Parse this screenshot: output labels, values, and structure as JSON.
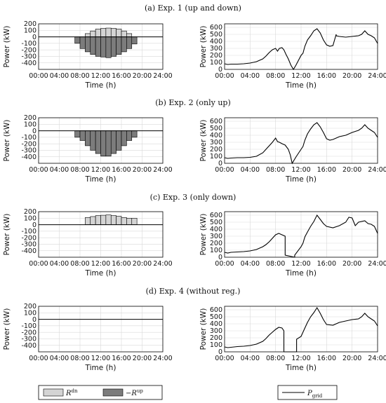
{
  "chart_data": [
    {
      "type": "bar",
      "row": 0,
      "title": "(a) Exp. 1 (up and down)",
      "xlabel": "Time (h)",
      "ylabel": "Power (kW)",
      "ylim": [
        -500,
        200
      ],
      "yticks": [
        200,
        100,
        0,
        -100,
        -200,
        -300,
        -400
      ],
      "xticks": [
        "00:00",
        "04:00",
        "08:00",
        "12:00",
        "16:00",
        "20:00",
        "24:00"
      ],
      "grid": true,
      "x_hours": [
        7.5,
        8.5,
        9.5,
        10.5,
        11.5,
        12.5,
        13.5,
        14.5,
        15.5,
        16.5,
        17.5,
        18.5
      ],
      "series": [
        {
          "name": "Rdn",
          "values": [
            0,
            0,
            50,
            90,
            120,
            130,
            135,
            130,
            120,
            90,
            50,
            0
          ]
        },
        {
          "name": "-Rup",
          "values": [
            -100,
            -180,
            -230,
            -270,
            -300,
            -310,
            -320,
            -300,
            -270,
            -230,
            -180,
            -110
          ]
        }
      ]
    },
    {
      "type": "line",
      "row": 0,
      "xlabel": "Time (h)",
      "ylabel": "Power (kW)",
      "ylim": [
        0,
        650
      ],
      "yticks": [
        600,
        500,
        400,
        300,
        200,
        100,
        0
      ],
      "xticks": [
        "00:00",
        "04:00",
        "08:00",
        "12:00",
        "16:00",
        "20:00",
        "24:00"
      ],
      "grid": true,
      "series": [
        {
          "name": "Pgrid",
          "x": [
            0,
            0.5,
            1,
            2,
            3,
            4,
            5,
            6,
            6.5,
            7,
            7.5,
            8,
            8.3,
            8.6,
            9,
            9.3,
            9.6,
            10,
            10.4,
            10.8,
            10.8,
            11.2,
            11.2,
            12,
            12.3,
            12.6,
            13,
            13.5,
            14,
            14.5,
            15,
            15.5,
            16,
            16.5,
            17,
            17.5,
            17.5,
            18,
            19,
            20,
            21,
            21.5,
            22,
            22.5,
            23,
            23.5,
            24
          ],
          "y": [
            80,
            70,
            75,
            75,
            80,
            90,
            110,
            150,
            190,
            240,
            280,
            300,
            260,
            300,
            310,
            280,
            220,
            150,
            60,
            0,
            0,
            60,
            60,
            200,
            230,
            330,
            420,
            480,
            550,
            580,
            520,
            420,
            350,
            330,
            340,
            500,
            480,
            470,
            460,
            470,
            480,
            500,
            550,
            500,
            480,
            450,
            370
          ]
        }
      ]
    },
    {
      "type": "bar",
      "row": 1,
      "title": "(b) Exp. 2 (only up)",
      "xlabel": "Time (h)",
      "ylabel": "Power (kW)",
      "ylim": [
        -500,
        200
      ],
      "yticks": [
        200,
        100,
        0,
        -100,
        -200,
        -300,
        -400
      ],
      "xticks": [
        "00:00",
        "04:00",
        "08:00",
        "12:00",
        "16:00",
        "20:00",
        "24:00"
      ],
      "grid": true,
      "x_hours": [
        7.5,
        8.5,
        9.5,
        10.5,
        11.5,
        12.5,
        13.5,
        14.5,
        15.5,
        16.5,
        17.5,
        18.5
      ],
      "series": [
        {
          "name": "-Rup",
          "values": [
            -100,
            -150,
            -230,
            -300,
            -350,
            -390,
            -390,
            -350,
            -300,
            -230,
            -150,
            -100
          ]
        }
      ]
    },
    {
      "type": "line",
      "row": 1,
      "xlabel": "Time (h)",
      "ylabel": "Power (kW)",
      "ylim": [
        0,
        650
      ],
      "yticks": [
        600,
        500,
        400,
        300,
        200,
        100,
        0
      ],
      "xticks": [
        "00:00",
        "04:00",
        "08:00",
        "12:00",
        "16:00",
        "20:00",
        "24:00"
      ],
      "grid": true,
      "series": [
        {
          "name": "Pgrid",
          "x": [
            0,
            0.5,
            1,
            2,
            3,
            4,
            5,
            6,
            6.5,
            7,
            7.5,
            8,
            8.3,
            8.6,
            9,
            9.5,
            10,
            10.3,
            10.6,
            10.6,
            11,
            11.2,
            12,
            12.3,
            12.6,
            13,
            13.5,
            14,
            14.5,
            15,
            15.5,
            16,
            16.5,
            17,
            17.5,
            18,
            19,
            20,
            21,
            21.5,
            22,
            22.5,
            23,
            23.5,
            24
          ],
          "y": [
            80,
            70,
            75,
            80,
            80,
            85,
            100,
            150,
            200,
            250,
            300,
            360,
            310,
            300,
            280,
            260,
            200,
            120,
            0,
            0,
            60,
            90,
            200,
            240,
            330,
            420,
            490,
            550,
            580,
            520,
            440,
            350,
            330,
            340,
            360,
            380,
            400,
            440,
            470,
            500,
            550,
            500,
            470,
            440,
            370
          ]
        }
      ]
    },
    {
      "type": "bar",
      "row": 2,
      "title": "(c) Exp. 3 (only down)",
      "xlabel": "Time (h)",
      "ylabel": "Power (kW)",
      "ylim": [
        -500,
        200
      ],
      "yticks": [
        200,
        100,
        0,
        -100,
        -200,
        -300,
        -400
      ],
      "xticks": [
        "00:00",
        "04:00",
        "08:00",
        "12:00",
        "16:00",
        "20:00",
        "24:00"
      ],
      "grid": true,
      "x_hours": [
        9.5,
        10.5,
        11.5,
        12.5,
        13.5,
        14.5,
        15.5,
        16.5,
        17.5,
        18.5
      ],
      "series": [
        {
          "name": "Rdn",
          "values": [
            110,
            125,
            140,
            145,
            150,
            140,
            130,
            110,
            100,
            100
          ]
        }
      ]
    },
    {
      "type": "line",
      "row": 2,
      "xlabel": "Time (h)",
      "ylabel": "Power (kW)",
      "ylim": [
        0,
        650
      ],
      "yticks": [
        600,
        500,
        400,
        300,
        200,
        100,
        0
      ],
      "xticks": [
        "00:00",
        "04:00",
        "08:00",
        "12:00",
        "16:00",
        "20:00",
        "24:00"
      ],
      "grid": true,
      "series": [
        {
          "name": "Pgrid",
          "x": [
            0,
            0.5,
            1,
            2,
            3,
            4,
            5,
            6,
            6.5,
            7,
            7.5,
            8,
            8.5,
            9,
            9.5,
            9.5,
            11,
            11,
            12,
            12.3,
            12.6,
            13,
            13.5,
            14,
            14.5,
            15,
            15.5,
            16,
            17,
            18,
            19,
            19.5,
            20,
            20.5,
            21,
            22,
            22.5,
            23,
            23.5,
            24
          ],
          "y": [
            70,
            60,
            70,
            75,
            80,
            90,
            110,
            150,
            180,
            220,
            270,
            320,
            340,
            320,
            300,
            30,
            0,
            30,
            150,
            200,
            290,
            360,
            440,
            510,
            600,
            540,
            480,
            440,
            420,
            450,
            500,
            570,
            560,
            450,
            500,
            520,
            480,
            470,
            440,
            340
          ]
        }
      ]
    },
    {
      "type": "bar",
      "row": 3,
      "title": "(d) Exp. 4 (without reg.)",
      "xlabel": "Time (h)",
      "ylabel": "Power (kW)",
      "ylim": [
        -500,
        200
      ],
      "yticks": [
        200,
        100,
        0,
        -100,
        -200,
        -300,
        -400
      ],
      "xticks": [
        "00:00",
        "04:00",
        "08:00",
        "12:00",
        "16:00",
        "20:00",
        "24:00"
      ],
      "grid": true,
      "x_hours": [],
      "series": []
    },
    {
      "type": "line",
      "row": 3,
      "xlabel": "Time (h)",
      "ylabel": "Power (kW)",
      "ylim": [
        0,
        650
      ],
      "yticks": [
        600,
        500,
        400,
        300,
        200,
        100,
        0
      ],
      "xticks": [
        "00:00",
        "04:00",
        "08:00",
        "12:00",
        "16:00",
        "20:00",
        "24:00"
      ],
      "grid": true,
      "series": [
        {
          "name": "Pgrid",
          "x": [
            0,
            0.5,
            1,
            2,
            3,
            4,
            5,
            6,
            6.5,
            7,
            7.5,
            8,
            8.5,
            9,
            9.3,
            9.3,
            11.3,
            11.3,
            12,
            12.5,
            13,
            13.5,
            14,
            14.5,
            15,
            15.5,
            16,
            17,
            18,
            19,
            20,
            21,
            21.5,
            22,
            22.5,
            23,
            23.5,
            24
          ],
          "y": [
            70,
            60,
            65,
            75,
            80,
            90,
            110,
            150,
            190,
            240,
            280,
            320,
            350,
            340,
            300,
            0,
            0,
            180,
            220,
            320,
            420,
            500,
            560,
            630,
            550,
            460,
            390,
            380,
            420,
            440,
            460,
            470,
            500,
            550,
            500,
            470,
            440,
            370
          ]
        }
      ]
    }
  ],
  "legend_left": {
    "items": [
      {
        "label_main": "R",
        "label_sup": "dn",
        "prefix": ""
      },
      {
        "label_main": "R",
        "label_sup": "up",
        "prefix": "−"
      }
    ]
  },
  "legend_right": {
    "items": [
      {
        "label_main": "P",
        "label_sub": "grid"
      }
    ]
  },
  "colors": {
    "rdn": "#d4d4d4",
    "rup": "#7c7c7c",
    "line": "#000000",
    "grid": "#d9d9d9"
  }
}
